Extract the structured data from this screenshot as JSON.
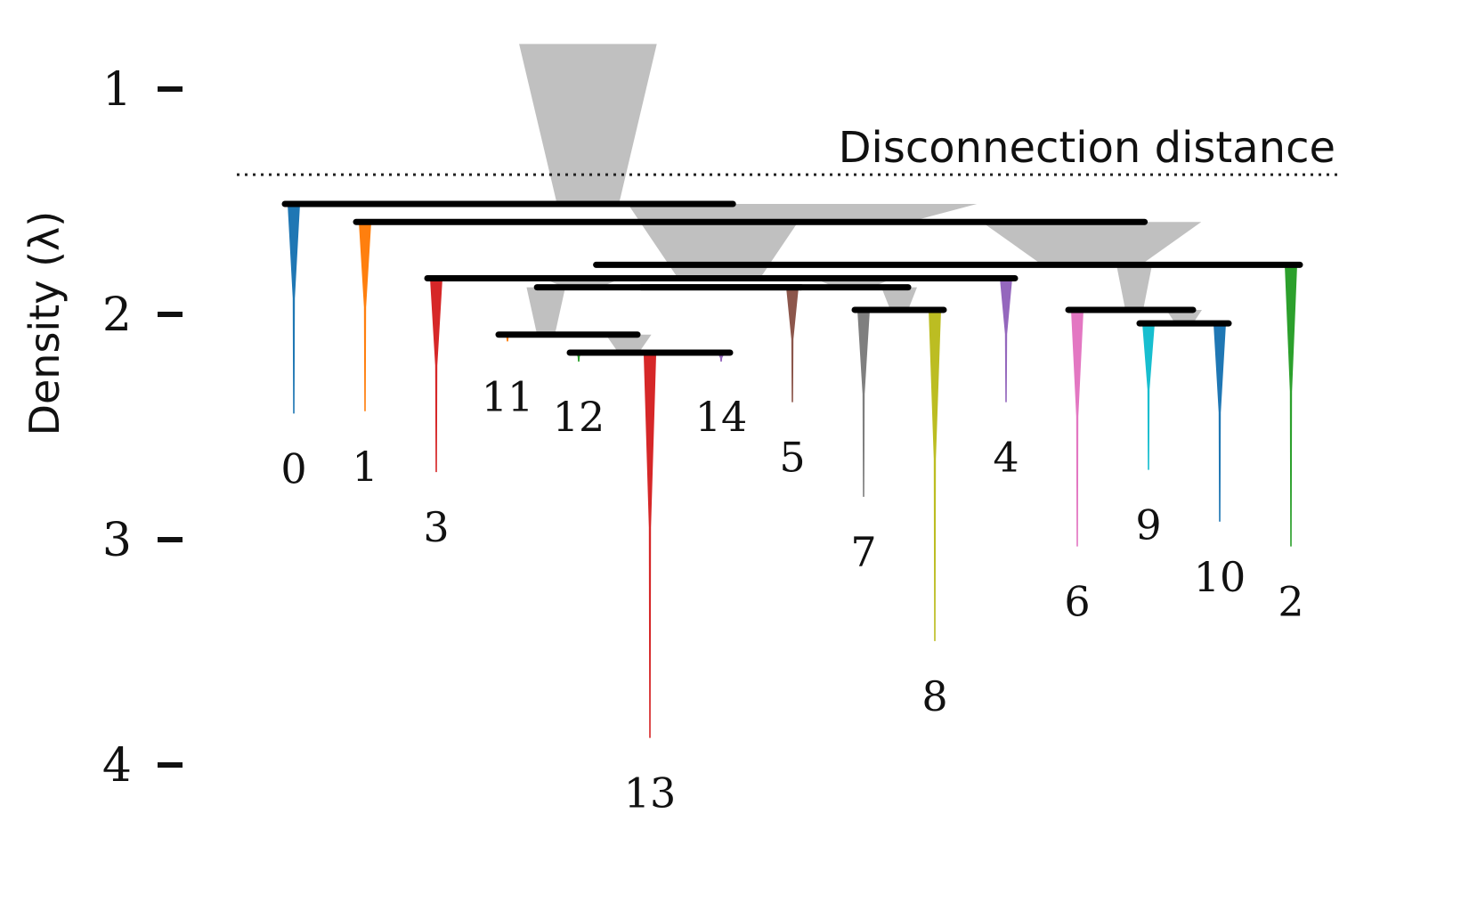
{
  "chart_data": {
    "type": "condensed-tree",
    "ylabel": "Density (λ)",
    "y_axis": {
      "ticks": [
        1,
        2,
        3,
        4
      ],
      "range": [
        0.8,
        4.4
      ],
      "inverted": true
    },
    "annotation": {
      "label": "Disconnection distance",
      "y": 1.38
    },
    "colors": {
      "0": "#1f77b4",
      "1": "#ff7f0e",
      "2": "#2ca02c",
      "3": "#d62728",
      "4": "#9467bd",
      "5": "#8c564b",
      "6": "#e377c2",
      "7": "#7f7f7f",
      "8": "#bcbd22",
      "9": "#17becf",
      "10": "#1f77b4",
      "11": "#ff7f0e",
      "12": "#2ca02c",
      "13": "#d62728",
      "14": "#9467bd",
      "internal": "#c0c0c0",
      "merge": "#000000"
    },
    "leaves": [
      {
        "id": "0",
        "x": 0.0,
        "birth": 1.51,
        "death": 2.44
      },
      {
        "id": "1",
        "x": 1.0,
        "birth": 1.59,
        "death": 2.43
      },
      {
        "id": "3",
        "x": 2.0,
        "birth": 1.84,
        "death": 2.7
      },
      {
        "id": "11",
        "x": 3.0,
        "birth": 2.09,
        "death": 2.12
      },
      {
        "id": "12",
        "x": 4.0,
        "birth": 2.17,
        "death": 2.21
      },
      {
        "id": "13",
        "x": 5.0,
        "birth": 2.18,
        "death": 3.88
      },
      {
        "id": "14",
        "x": 6.0,
        "birth": 2.18,
        "death": 2.21
      },
      {
        "id": "5",
        "x": 7.0,
        "birth": 1.88,
        "death": 2.39
      },
      {
        "id": "7",
        "x": 8.0,
        "birth": 1.98,
        "death": 2.81
      },
      {
        "id": "8",
        "x": 9.0,
        "birth": 1.98,
        "death": 3.45
      },
      {
        "id": "4",
        "x": 10.0,
        "birth": 1.84,
        "death": 2.39
      },
      {
        "id": "6",
        "x": 11.0,
        "birth": 1.98,
        "death": 3.03
      },
      {
        "id": "9",
        "x": 12.0,
        "birth": 2.04,
        "death": 2.69
      },
      {
        "id": "10",
        "x": 13.0,
        "birth": 2.04,
        "death": 2.92
      },
      {
        "id": "2",
        "x": 14.0,
        "birth": 1.78,
        "death": 3.03
      }
    ],
    "merges": [
      {
        "y": 1.51,
        "x_from": 0.0,
        "x_to": 6.04,
        "node_x": 4.13,
        "top_y": 0.8,
        "note": "root"
      },
      {
        "y": 1.59,
        "x_from": 1.0,
        "x_to": 11.82,
        "node_x": 7.86,
        "top_y": 1.51
      },
      {
        "y": 1.78,
        "x_from": 4.37,
        "x_to": 14.0,
        "node_x": 11.2,
        "top_y": 1.59
      },
      {
        "y": 1.84,
        "x_from": 2.0,
        "x_to": 10.0,
        "node_x": 5.97,
        "top_y": 1.51
      },
      {
        "y": 1.88,
        "x_from": 3.54,
        "x_to": 7.0,
        "node_x": 4.05,
        "top_y": 1.84
      },
      {
        "y": 1.88,
        "x_from": 5.0,
        "x_to": 8.5,
        "node_x": 7.86,
        "top_y": 1.84
      },
      {
        "y": 2.09,
        "x_from": 3.0,
        "x_to": 4.7,
        "node_x": 3.54,
        "top_y": 1.88
      },
      {
        "y": 2.17,
        "x_from": 4.0,
        "x_to": 6.0,
        "node_x": 4.7,
        "top_y": 2.09
      },
      {
        "y": 1.98,
        "x_from": 8.0,
        "x_to": 9.0,
        "node_x": 8.5,
        "top_y": 1.88
      },
      {
        "y": 1.98,
        "x_from": 11.0,
        "x_to": 12.5,
        "node_x": 11.8,
        "top_y": 1.78
      },
      {
        "y": 2.04,
        "x_from": 12.0,
        "x_to": 13.0,
        "node_x": 12.5,
        "top_y": 1.98
      }
    ]
  }
}
